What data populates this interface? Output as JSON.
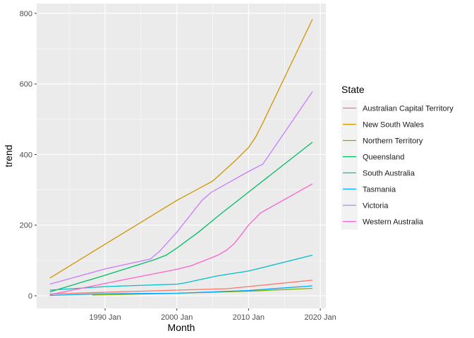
{
  "chart_data": {
    "type": "line",
    "title": "",
    "xlabel": "Month",
    "ylabel": "trend",
    "x_ticks": [
      "1990 Jan",
      "2000 Jan",
      "2010 Jan",
      "2020 Jan"
    ],
    "y_ticks": [
      0,
      200,
      400,
      600,
      800
    ],
    "xlim": [
      1980.2,
      2021.0
    ],
    "ylim": [
      -37,
      828
    ],
    "grid": true,
    "legend": {
      "title": "State",
      "position": "right"
    },
    "series": [
      {
        "name": "Australian Capital Territory",
        "color": "#F8766D",
        "x": [
          1982.3,
          1990,
          2000,
          2007,
          2018.9
        ],
        "y": [
          5,
          10,
          16,
          20,
          44
        ]
      },
      {
        "name": "New South Wales",
        "color": "#CD9600",
        "x": [
          1982.3,
          1990,
          2000,
          2005,
          2008,
          2010,
          2011,
          2012,
          2018.9
        ],
        "y": [
          50,
          146,
          270,
          325,
          380,
          420,
          450,
          490,
          783
        ]
      },
      {
        "name": "Northern Territory",
        "color": "#7CAE00",
        "x": [
          1988.2,
          2000,
          2010,
          2018.9
        ],
        "y": [
          2,
          7,
          13,
          21
        ]
      },
      {
        "name": "Queensland",
        "color": "#00BE67",
        "x": [
          1982.3,
          1990,
          1997,
          1998.5,
          2000,
          2003,
          2006,
          2018.9
        ],
        "y": [
          11,
          58,
          103,
          115,
          135,
          180,
          230,
          435
        ]
      },
      {
        "name": "South Australia",
        "color": "#00BFC4",
        "x": [
          1982.3,
          1990,
          2000,
          2001,
          2005.6,
          2010,
          2018.9
        ],
        "y": [
          16,
          26,
          33,
          36,
          56,
          70,
          115
        ]
      },
      {
        "name": "Tasmania",
        "color": "#00A9FF",
        "x": [
          1982.3,
          1990,
          2000,
          2010,
          2018.9
        ],
        "y": [
          1,
          6,
          7,
          15,
          28
        ]
      },
      {
        "name": "Victoria",
        "color": "#C77CFF",
        "x": [
          1982.3,
          1990,
          1996.3,
          1997.5,
          2000,
          2003.5,
          2004.8,
          2010,
          2012,
          2018.9
        ],
        "y": [
          33,
          76,
          104,
          124,
          180,
          270,
          293,
          352,
          373,
          578
        ]
      },
      {
        "name": "Western Australia",
        "color": "#FF61CC",
        "x": [
          1982.3,
          1990,
          2000,
          2002,
          2005.6,
          2007,
          2008.1,
          2010,
          2011.7,
          2018.9
        ],
        "y": [
          3,
          35,
          75,
          85,
          114,
          130,
          150,
          200,
          235,
          317
        ]
      }
    ]
  }
}
